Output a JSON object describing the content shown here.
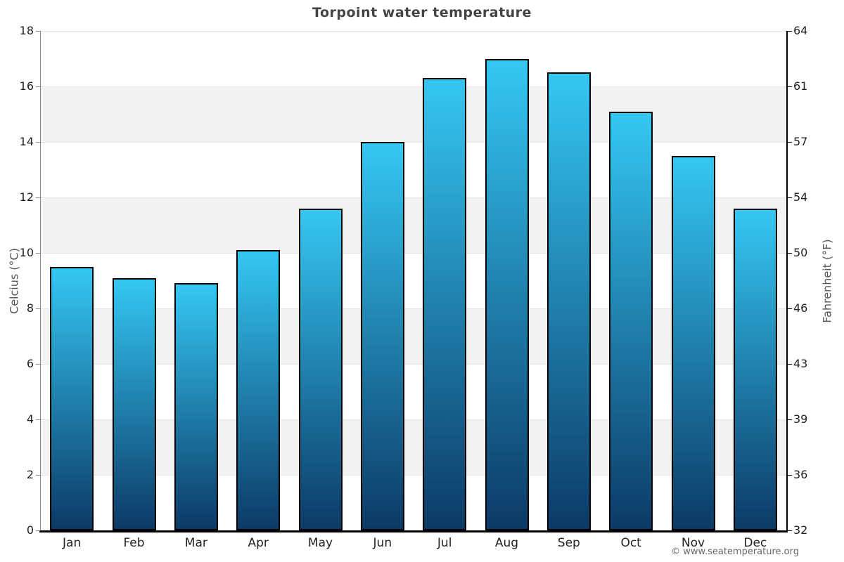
{
  "page": {
    "footer": "© www.seatemperature.org"
  },
  "chart_data": {
    "type": "bar",
    "title": "Torpoint water temperature",
    "categories": [
      "Jan",
      "Feb",
      "Mar",
      "Apr",
      "May",
      "Jun",
      "Jul",
      "Aug",
      "Sep",
      "Oct",
      "Nov",
      "Dec"
    ],
    "values": [
      9.5,
      9.1,
      8.9,
      10.1,
      11.6,
      14.0,
      16.3,
      17.0,
      16.5,
      15.1,
      13.5,
      11.6
    ],
    "unit": "°C",
    "ylabel_left": "Celcius (°C)",
    "ylabel_right": "Fahrenheit (°F)",
    "ylim": [
      0,
      18
    ],
    "y_ticks_celsius": [
      0,
      2,
      4,
      6,
      8,
      10,
      12,
      14,
      16,
      18
    ],
    "y_ticks_fahrenheit": [
      32,
      36,
      39,
      43,
      46,
      50,
      54,
      57,
      61,
      64
    ],
    "gray_bands": [
      [
        2,
        4
      ],
      [
        6,
        8
      ],
      [
        10,
        12
      ],
      [
        14,
        16
      ]
    ],
    "legend": "none",
    "grid": "alternating horizontal bands, gridline every 2°C",
    "colors": {
      "bar_top": "#35c7f3",
      "bar_bottom": "#0c3a66",
      "bar_border": "#000000",
      "band": "#f2f2f2",
      "gridline": "#e6e6e6",
      "axis_line_left": "#888888",
      "axis_line_dark": "#000000",
      "title": "#444444",
      "labels": "#222222",
      "axis_title": "#555555",
      "footer": "#666666"
    }
  }
}
